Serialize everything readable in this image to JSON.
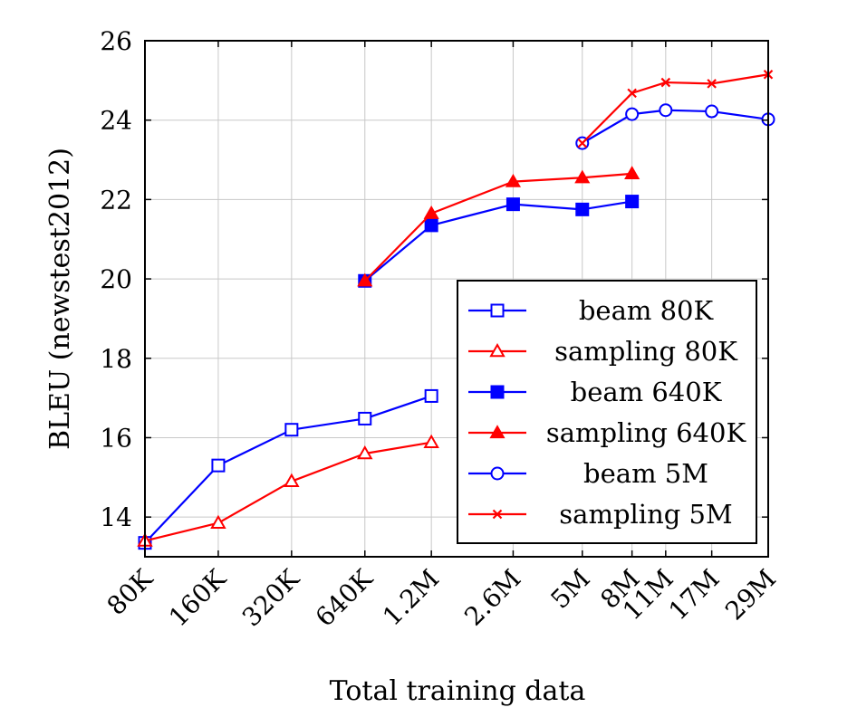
{
  "chart_data": {
    "type": "line",
    "title": "",
    "xlabel": "Total training data",
    "ylabel": "BLEU (newstest2012)",
    "xscale": "log",
    "x_ticks": [
      {
        "label": "80K",
        "value": 80000
      },
      {
        "label": "160K",
        "value": 160000
      },
      {
        "label": "320K",
        "value": 320000
      },
      {
        "label": "640K",
        "value": 640000
      },
      {
        "label": "1.2M",
        "value": 1200000
      },
      {
        "label": "2.6M",
        "value": 2600000
      },
      {
        "label": "5M",
        "value": 5000000
      },
      {
        "label": "8M",
        "value": 8000000
      },
      {
        "label": "11M",
        "value": 11000000
      },
      {
        "label": "17M",
        "value": 17000000
      },
      {
        "label": "29M",
        "value": 29000000
      }
    ],
    "xlim": [
      80000,
      29000000
    ],
    "ylim": [
      13,
      26
    ],
    "y_ticks": [
      14,
      16,
      18,
      20,
      22,
      24,
      26
    ],
    "grid": true,
    "legend_position": "right",
    "series": [
      {
        "name": "beam 80K",
        "color": "#0000ff",
        "marker": "square-open",
        "x": [
          80000,
          160000,
          320000,
          640000,
          1200000
        ],
        "y": [
          13.35,
          15.3,
          16.2,
          16.48,
          17.05
        ]
      },
      {
        "name": "sampling 80K",
        "color": "#ff0000",
        "marker": "triangle-open",
        "x": [
          80000,
          160000,
          320000,
          640000,
          1200000
        ],
        "y": [
          13.4,
          13.85,
          14.9,
          15.6,
          15.88
        ]
      },
      {
        "name": "beam 640K",
        "color": "#0000ff",
        "marker": "square-filled",
        "x": [
          640000,
          1200000,
          2600000,
          5000000,
          8000000
        ],
        "y": [
          19.95,
          21.35,
          21.88,
          21.75,
          21.95
        ]
      },
      {
        "name": "sampling 640K",
        "color": "#ff0000",
        "marker": "triangle-filled",
        "x": [
          640000,
          1200000,
          2600000,
          5000000,
          8000000
        ],
        "y": [
          19.95,
          21.65,
          22.45,
          22.55,
          22.65
        ]
      },
      {
        "name": "beam 5M",
        "color": "#0000ff",
        "marker": "circle-open",
        "x": [
          5000000,
          8000000,
          11000000,
          17000000,
          29000000
        ],
        "y": [
          23.42,
          24.15,
          24.25,
          24.22,
          24.02
        ]
      },
      {
        "name": "sampling 5M",
        "color": "#ff0000",
        "marker": "cross",
        "x": [
          5000000,
          8000000,
          11000000,
          17000000,
          29000000
        ],
        "y": [
          23.42,
          24.68,
          24.95,
          24.92,
          25.15
        ]
      }
    ]
  }
}
